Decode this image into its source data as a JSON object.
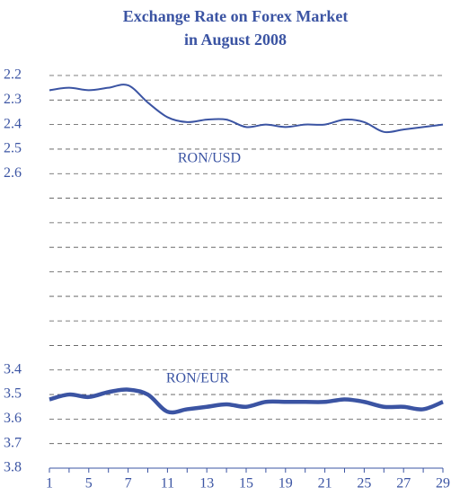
{
  "chart_data": {
    "type": "line",
    "title": [
      "Exchange Rate on Forex Market",
      "in August 2008"
    ],
    "categories": [
      "1",
      null,
      "5",
      null,
      "7",
      null,
      "11",
      null,
      "13",
      null,
      "15",
      null,
      "19",
      null,
      "21",
      null,
      "25",
      null,
      "27",
      null,
      "29"
    ],
    "series": [
      {
        "name": "RON/USD",
        "color": "#3b54a3",
        "values": [
          2.26,
          2.25,
          2.26,
          2.25,
          2.24,
          2.31,
          2.37,
          2.39,
          2.38,
          2.38,
          2.41,
          2.4,
          2.41,
          2.4,
          2.4,
          2.38,
          2.39,
          2.43,
          2.42,
          2.41,
          2.4
        ]
      },
      {
        "name": "RON/EUR",
        "color": "#3b54a3",
        "values": [
          3.52,
          3.5,
          3.51,
          3.49,
          3.48,
          3.5,
          3.57,
          3.56,
          3.55,
          3.54,
          3.55,
          3.53,
          3.53,
          3.53,
          3.53,
          3.52,
          3.53,
          3.55,
          3.55,
          3.56,
          3.53
        ]
      }
    ],
    "ylim": [
      2.2,
      3.8
    ],
    "y_inverted": true,
    "yticks": [
      2.2,
      2.3,
      2.4,
      2.5,
      2.6,
      3.4,
      3.5,
      3.6,
      3.7,
      3.8
    ],
    "grid_yticks": [
      2.7,
      2.8,
      2.9,
      3.0,
      3.1,
      3.2,
      3.3
    ],
    "grid": true
  }
}
